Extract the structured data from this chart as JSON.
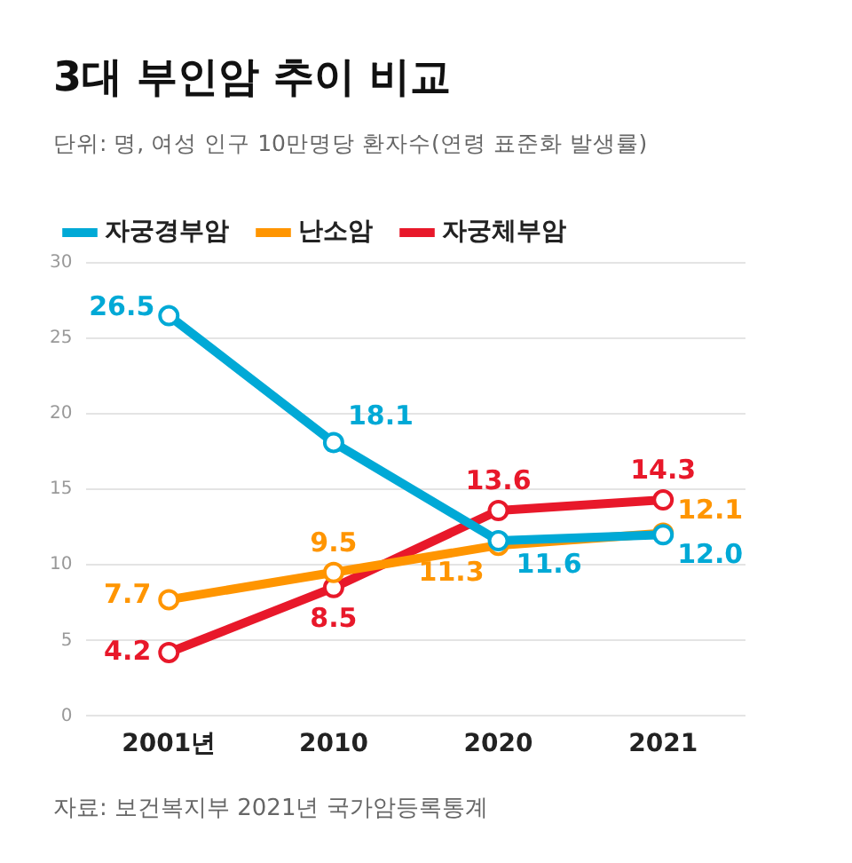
{
  "chart_data": {
    "type": "line",
    "title": "3대 부인암 추이 비교",
    "subtitle": "단위: 명, 여성 인구 10만명당 환자수(연령 표준화 발생률)",
    "categories": [
      "2001년",
      "2010",
      "2020",
      "2021"
    ],
    "series": [
      {
        "name": "자궁경부암",
        "color": "#00a9d6",
        "values": [
          26.5,
          18.1,
          11.6,
          12.0
        ],
        "value_labels": [
          "26.5",
          "18.1",
          "11.6",
          "12.0"
        ]
      },
      {
        "name": "난소암",
        "color": "#ff9500",
        "values": [
          7.7,
          9.5,
          11.3,
          12.1
        ],
        "value_labels": [
          "7.7",
          "9.5",
          "11.3",
          "12.1"
        ]
      },
      {
        "name": "자궁체부암",
        "color": "#e8182a",
        "values": [
          4.2,
          8.5,
          13.6,
          14.3
        ],
        "value_labels": [
          "4.2",
          "8.5",
          "13.6",
          "14.3"
        ]
      }
    ],
    "ylim": [
      0,
      30
    ],
    "yticks": [
      0,
      5,
      10,
      15,
      20,
      25,
      30
    ],
    "grid": "y",
    "legend": "top left",
    "marker": "circle",
    "line_style": "solid",
    "annotations": [
      "자료: 보건복지부 2021년 국가암등록통계"
    ]
  }
}
